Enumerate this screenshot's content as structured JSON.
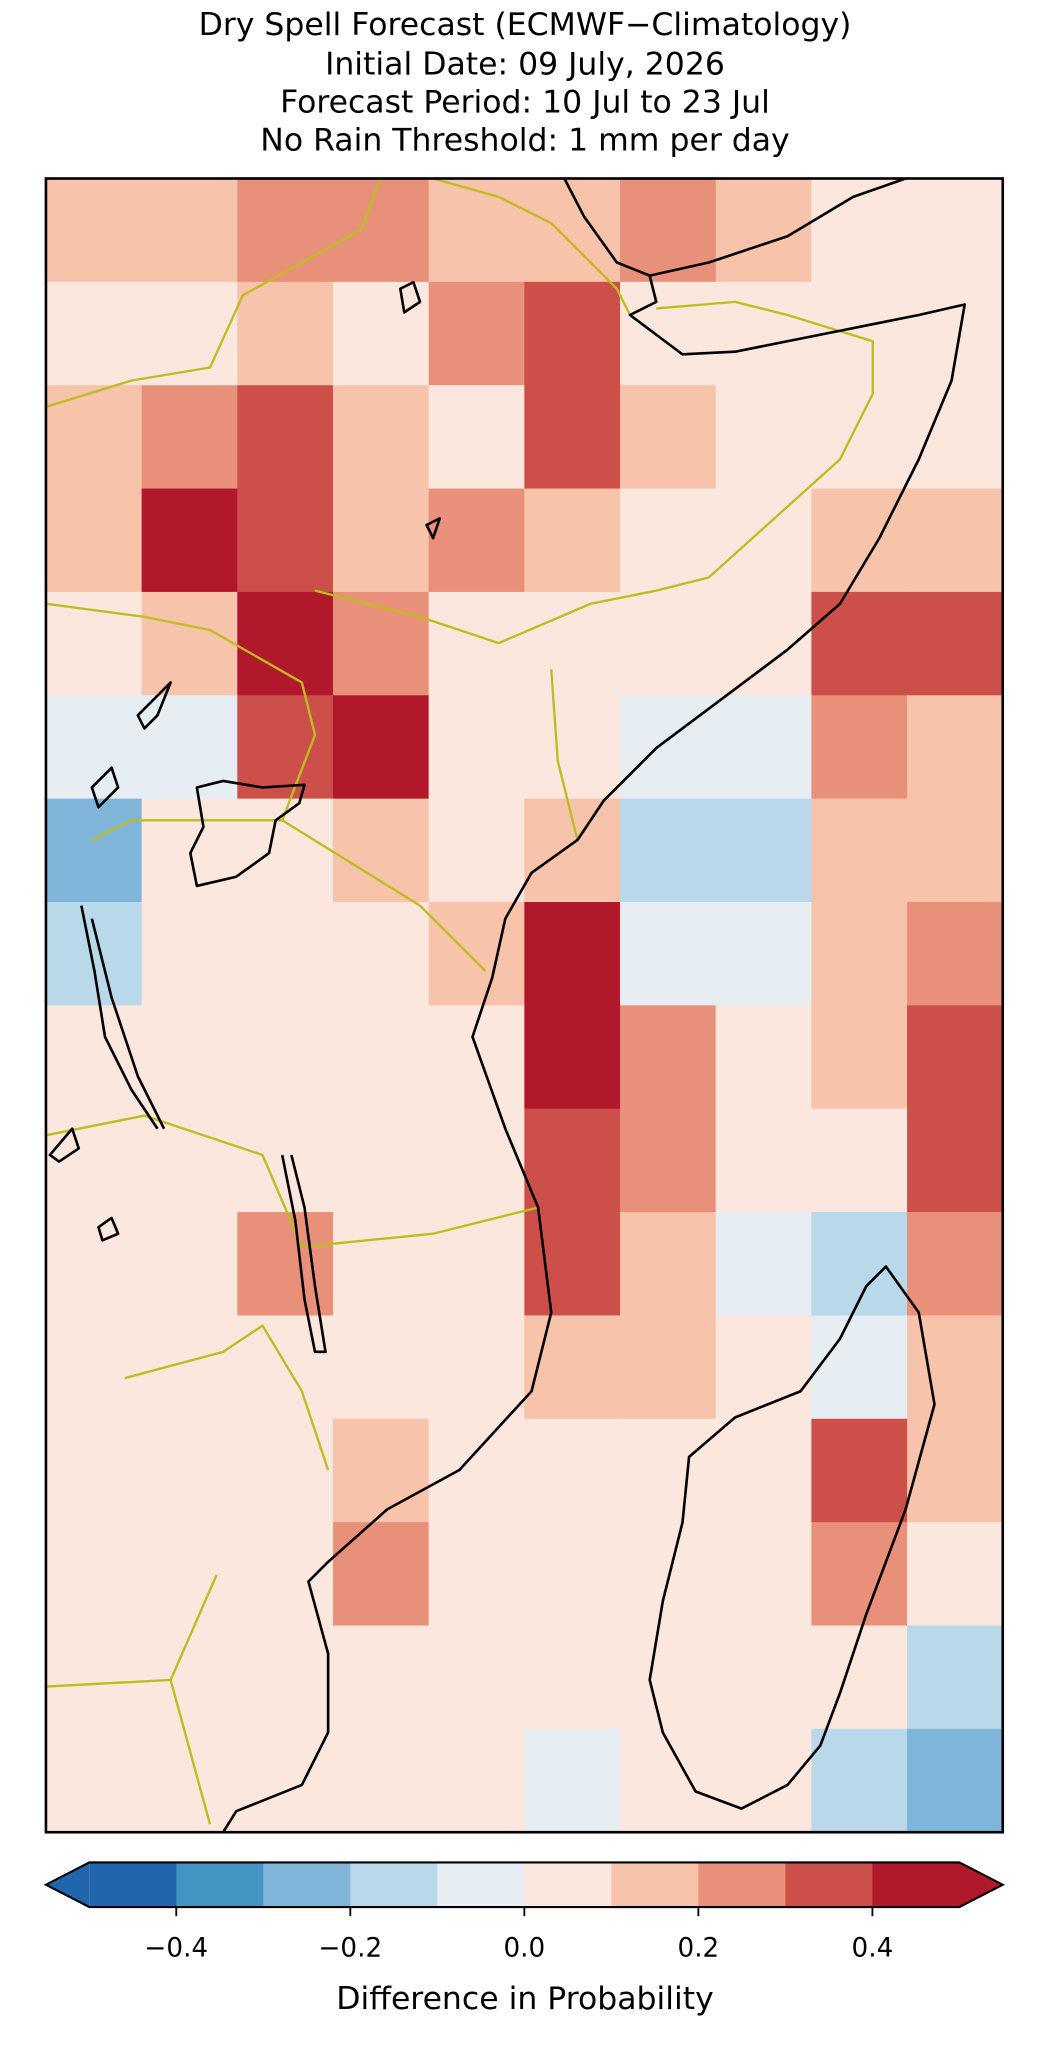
{
  "chart_data": {
    "type": "heatmap",
    "title": [
      "Dry Spell Forecast (ECMWF−Climatology)",
      "Initial Date: 09 July, 2026",
      "Forecast Period: 10 Jul to 23 Jul",
      "No Rain Threshold: 1 mm per day"
    ],
    "values": [
      [
        0.1,
        0.15,
        0.25,
        0.2,
        0.1,
        0.15,
        0.2,
        0.1,
        0.05,
        0.05
      ],
      [
        0.0,
        0.05,
        0.1,
        0.05,
        0.2,
        0.3,
        0.05,
        0.05,
        0.05,
        0.05
      ],
      [
        0.1,
        0.2,
        0.3,
        0.1,
        0.05,
        0.35,
        0.1,
        0.05,
        0.05,
        0.05
      ],
      [
        0.1,
        0.4,
        0.3,
        0.15,
        0.25,
        0.1,
        0.05,
        0.05,
        0.1,
        0.15
      ],
      [
        0.0,
        0.15,
        0.4,
        0.2,
        0.05,
        0.05,
        0.05,
        0.0,
        0.3,
        0.35
      ],
      [
        -0.1,
        -0.05,
        0.3,
        0.4,
        0.05,
        0.05,
        -0.05,
        -0.1,
        0.2,
        0.1
      ],
      [
        -0.3,
        0.0,
        0.05,
        0.1,
        0.05,
        0.15,
        -0.15,
        -0.2,
        0.1,
        0.15
      ],
      [
        -0.2,
        0.05,
        0.05,
        0.05,
        0.15,
        0.4,
        -0.1,
        -0.05,
        0.15,
        0.25
      ],
      [
        0.05,
        0.05,
        0.05,
        0.05,
        0.0,
        0.45,
        0.25,
        0.05,
        0.15,
        0.3
      ],
      [
        0.05,
        0.05,
        0.05,
        0.05,
        0.05,
        0.3,
        0.2,
        0.05,
        0.05,
        0.3
      ],
      [
        0.05,
        0.05,
        0.2,
        0.05,
        0.05,
        0.35,
        0.1,
        -0.05,
        -0.15,
        0.25
      ],
      [
        0.05,
        0.05,
        0.05,
        0.05,
        0.05,
        0.15,
        0.1,
        0.05,
        -0.05,
        0.1
      ],
      [
        0.05,
        0.05,
        0.05,
        0.15,
        0.05,
        0.05,
        0.05,
        0.05,
        0.3,
        0.1
      ],
      [
        0.05,
        0.05,
        0.05,
        0.2,
        0.05,
        0.0,
        0.05,
        0.05,
        0.2,
        0.0
      ],
      [
        0.05,
        0.05,
        0.05,
        0.05,
        0.0,
        0.0,
        0.05,
        0.05,
        0.05,
        -0.15
      ],
      [
        0.05,
        0.05,
        0.05,
        0.0,
        0.0,
        -0.05,
        0.0,
        0.05,
        -0.2,
        -0.3
      ]
    ],
    "levels": [
      -0.5,
      -0.4,
      -0.3,
      -0.2,
      -0.1,
      0,
      0.1,
      0.2,
      0.3,
      0.4,
      0.5
    ],
    "colors": [
      "#2166ac",
      "#4393c3",
      "#7fb5d8",
      "#b9d8ea",
      "#e6eef4",
      "#fbe7de",
      "#f7c3aa",
      "#e8907a",
      "#cc5049",
      "#b2182b"
    ],
    "extend": "both",
    "colorbar_label": "Difference in Probability",
    "cticks": [
      {
        "value": -0.4,
        "label": "−0.4"
      },
      {
        "value": -0.2,
        "label": "−0.2"
      },
      {
        "value": 0,
        "label": "0.0"
      },
      0.2,
      0.4
    ]
  }
}
